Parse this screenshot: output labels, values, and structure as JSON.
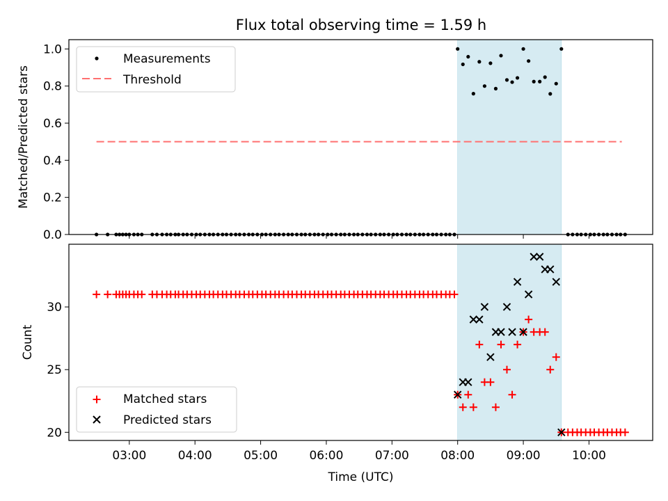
{
  "chart_data": {
    "title": "Flux total observing time = 1.59 h",
    "xlabel": "Time (UTC)",
    "x_tick_labels": [
      "03:00",
      "04:00",
      "05:00",
      "06:00",
      "07:00",
      "08:00",
      "09:00",
      "10:00"
    ],
    "x_tick_hours": [
      3,
      4,
      5,
      6,
      7,
      8,
      9,
      10
    ],
    "xlim_hours": [
      2.08,
      10.97
    ],
    "shaded_span_hours": [
      8.0,
      9.58
    ],
    "shade_color": "#add8e6",
    "panels": [
      {
        "type": "scatter",
        "ylabel": "Matched/Predicted stars",
        "ylim": [
          0,
          1.05
        ],
        "y_ticks": [
          0.0,
          0.2,
          0.4,
          0.6,
          0.8,
          1.0
        ],
        "y_tick_labels": [
          "0.0",
          "0.2",
          "0.4",
          "0.6",
          "0.8",
          "1.0"
        ],
        "legend": {
          "position": "upper-left",
          "entries": [
            "Measurements",
            "Threshold"
          ]
        },
        "measurements": {
          "name": "Measurements",
          "color": "#000000",
          "zero_x": [
            2.5,
            2.67,
            2.8,
            2.85,
            2.9,
            2.95,
            3.0,
            3.07,
            3.13,
            3.19,
            3.35,
            3.42,
            3.5,
            3.57,
            3.63,
            3.7,
            3.75,
            3.82,
            3.88,
            3.95,
            4.02,
            4.08,
            4.15,
            4.22,
            4.28,
            4.35,
            4.42,
            4.48,
            4.55,
            4.62,
            4.68,
            4.75,
            4.82,
            4.88,
            4.95,
            5.02,
            5.08,
            5.15,
            5.22,
            5.28,
            5.35,
            5.42,
            5.48,
            5.55,
            5.62,
            5.68,
            5.75,
            5.82,
            5.88,
            5.95,
            6.02,
            6.08,
            6.15,
            6.22,
            6.28,
            6.35,
            6.42,
            6.48,
            6.55,
            6.62,
            6.68,
            6.75,
            6.82,
            6.88,
            6.95,
            7.02,
            7.08,
            7.15,
            7.22,
            7.28,
            7.35,
            7.42,
            7.48,
            7.55,
            7.62,
            7.68,
            7.75,
            7.82,
            7.88,
            7.95,
            9.68,
            9.75,
            9.82,
            9.88,
            9.95,
            10.02,
            10.08,
            10.15,
            10.22,
            10.28,
            10.35,
            10.42,
            10.48,
            10.55
          ],
          "points": [
            [
              8.0,
              1.0
            ],
            [
              8.08,
              0.917
            ],
            [
              8.16,
              0.958
            ],
            [
              8.24,
              0.759
            ],
            [
              8.33,
              0.931
            ],
            [
              8.41,
              0.8
            ],
            [
              8.5,
              0.923
            ],
            [
              8.58,
              0.786
            ],
            [
              8.66,
              0.964
            ],
            [
              8.75,
              0.833
            ],
            [
              8.83,
              0.821
            ],
            [
              8.91,
              0.844
            ],
            [
              9.0,
              1.0
            ],
            [
              9.08,
              0.935
            ],
            [
              9.16,
              0.824
            ],
            [
              9.25,
              0.824
            ],
            [
              9.33,
              0.848
            ],
            [
              9.41,
              0.758
            ],
            [
              9.5,
              0.813
            ],
            [
              9.58,
              1.0
            ]
          ]
        },
        "threshold": {
          "name": "Threshold",
          "value": 0.5,
          "x_range": [
            2.5,
            10.5
          ],
          "color": "#ff7070"
        }
      },
      {
        "type": "scatter",
        "ylabel": "Count",
        "ylim": [
          19.35,
          35.0
        ],
        "y_ticks": [
          20,
          25,
          30
        ],
        "y_tick_labels": [
          "20",
          "25",
          "30"
        ],
        "legend": {
          "position": "lower-left",
          "entries": [
            "Matched stars",
            "Predicted stars"
          ]
        },
        "matched": {
          "name": "Matched stars",
          "color": "#ff0000",
          "constant_31_x": [
            2.5,
            2.67,
            2.8,
            2.85,
            2.9,
            2.95,
            3.0,
            3.07,
            3.13,
            3.19,
            3.35,
            3.42,
            3.5,
            3.57,
            3.63,
            3.7,
            3.75,
            3.82,
            3.88,
            3.95,
            4.02,
            4.08,
            4.15,
            4.22,
            4.28,
            4.35,
            4.42,
            4.48,
            4.55,
            4.62,
            4.68,
            4.75,
            4.82,
            4.88,
            4.95,
            5.02,
            5.08,
            5.15,
            5.22,
            5.28,
            5.35,
            5.42,
            5.48,
            5.55,
            5.62,
            5.68,
            5.75,
            5.82,
            5.88,
            5.95,
            6.02,
            6.08,
            6.15,
            6.22,
            6.28,
            6.35,
            6.42,
            6.48,
            6.55,
            6.62,
            6.68,
            6.75,
            6.82,
            6.88,
            6.95,
            7.02,
            7.08,
            7.15,
            7.22,
            7.28,
            7.35,
            7.42,
            7.48,
            7.55,
            7.62,
            7.68,
            7.75,
            7.82,
            7.88,
            7.95
          ],
          "constant_20_x": [
            9.68,
            9.75,
            9.82,
            9.88,
            9.95,
            10.02,
            10.08,
            10.15,
            10.22,
            10.28,
            10.35,
            10.42,
            10.48,
            10.55
          ],
          "points": [
            [
              8.0,
              23
            ],
            [
              8.08,
              22
            ],
            [
              8.16,
              23
            ],
            [
              8.24,
              22
            ],
            [
              8.33,
              27
            ],
            [
              8.41,
              24
            ],
            [
              8.5,
              24
            ],
            [
              8.58,
              22
            ],
            [
              8.66,
              27
            ],
            [
              8.75,
              25
            ],
            [
              8.83,
              23
            ],
            [
              8.91,
              27
            ],
            [
              9.0,
              28
            ],
            [
              9.08,
              29
            ],
            [
              9.16,
              28
            ],
            [
              9.25,
              28
            ],
            [
              9.33,
              28
            ],
            [
              9.41,
              25
            ],
            [
              9.5,
              26
            ],
            [
              9.58,
              20
            ]
          ]
        },
        "predicted": {
          "name": "Predicted stars",
          "color": "#000000",
          "points": [
            [
              8.0,
              23
            ],
            [
              8.08,
              24
            ],
            [
              8.16,
              24
            ],
            [
              8.24,
              29
            ],
            [
              8.33,
              29
            ],
            [
              8.41,
              30
            ],
            [
              8.5,
              26
            ],
            [
              8.58,
              28
            ],
            [
              8.66,
              28
            ],
            [
              8.75,
              30
            ],
            [
              8.83,
              28
            ],
            [
              8.91,
              32
            ],
            [
              9.0,
              28
            ],
            [
              9.08,
              31
            ],
            [
              9.16,
              34
            ],
            [
              9.25,
              34
            ],
            [
              9.33,
              33
            ],
            [
              9.41,
              33
            ],
            [
              9.5,
              32
            ],
            [
              9.58,
              20
            ]
          ]
        }
      }
    ]
  }
}
